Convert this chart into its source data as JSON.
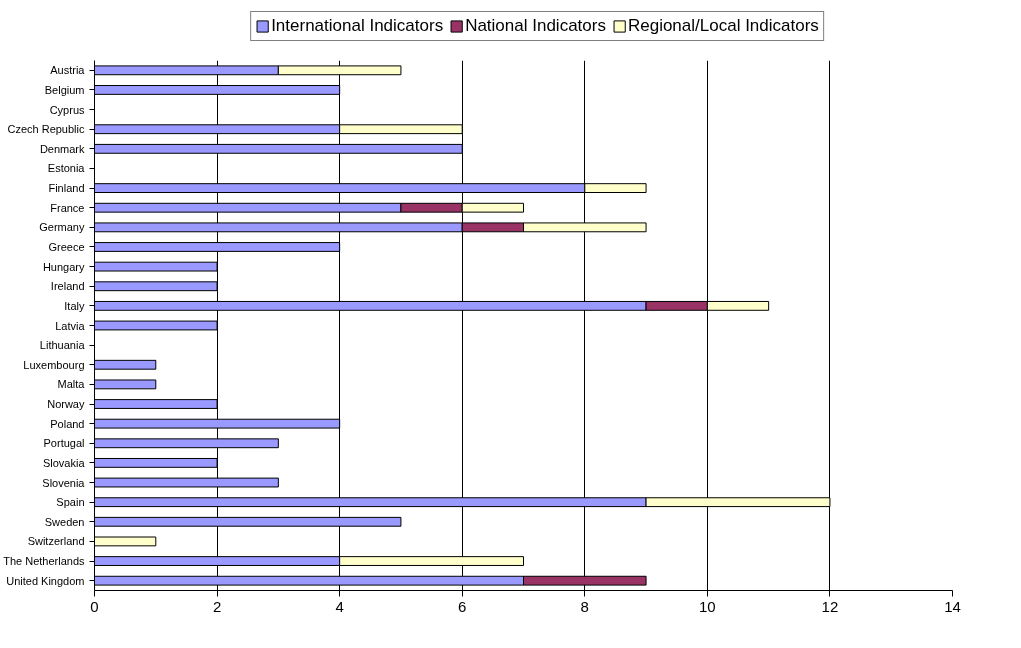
{
  "chart_data": {
    "type": "bar",
    "orientation": "horizontal",
    "stacked": true,
    "categories": [
      "Austria",
      "Belgium",
      "Cyprus",
      "Czech Republic",
      "Denmark",
      "Estonia",
      "Finland",
      "France",
      "Germany",
      "Greece",
      "Hungary",
      "Ireland",
      "Italy",
      "Latvia",
      "Lithuania",
      "Luxembourg",
      "Malta",
      "Norway",
      "Poland",
      "Portugal",
      "Slovakia",
      "Slovenia",
      "Spain",
      "Sweden",
      "Switzerland",
      "The Netherlands",
      "United Kingdom"
    ],
    "series": [
      {
        "name": "International Indicators",
        "color": "#9999ff",
        "values": [
          3,
          4,
          0,
          4,
          6,
          0,
          8,
          5,
          6,
          4,
          2,
          2,
          9,
          2,
          0,
          1,
          1,
          2,
          4,
          3,
          2,
          3,
          9,
          5,
          0,
          4,
          7
        ]
      },
      {
        "name": "National Indicators",
        "color": "#993366",
        "values": [
          0,
          0,
          0,
          0,
          0,
          0,
          0,
          1,
          1,
          0,
          0,
          0,
          1,
          0,
          0,
          0,
          0,
          0,
          0,
          0,
          0,
          0,
          0,
          0,
          0,
          0,
          2
        ]
      },
      {
        "name": "Regional/Local Indicators",
        "color": "#ffffcc",
        "values": [
          2,
          0,
          0,
          2,
          0,
          0,
          1,
          1,
          2,
          0,
          0,
          0,
          1,
          0,
          0,
          0,
          0,
          0,
          0,
          0,
          0,
          0,
          3,
          0,
          1,
          3,
          0
        ]
      }
    ],
    "xlim": [
      0,
      14
    ],
    "xticks": [
      0,
      2,
      4,
      6,
      8,
      10,
      12,
      14
    ],
    "grid": "x",
    "legend": "top"
  }
}
